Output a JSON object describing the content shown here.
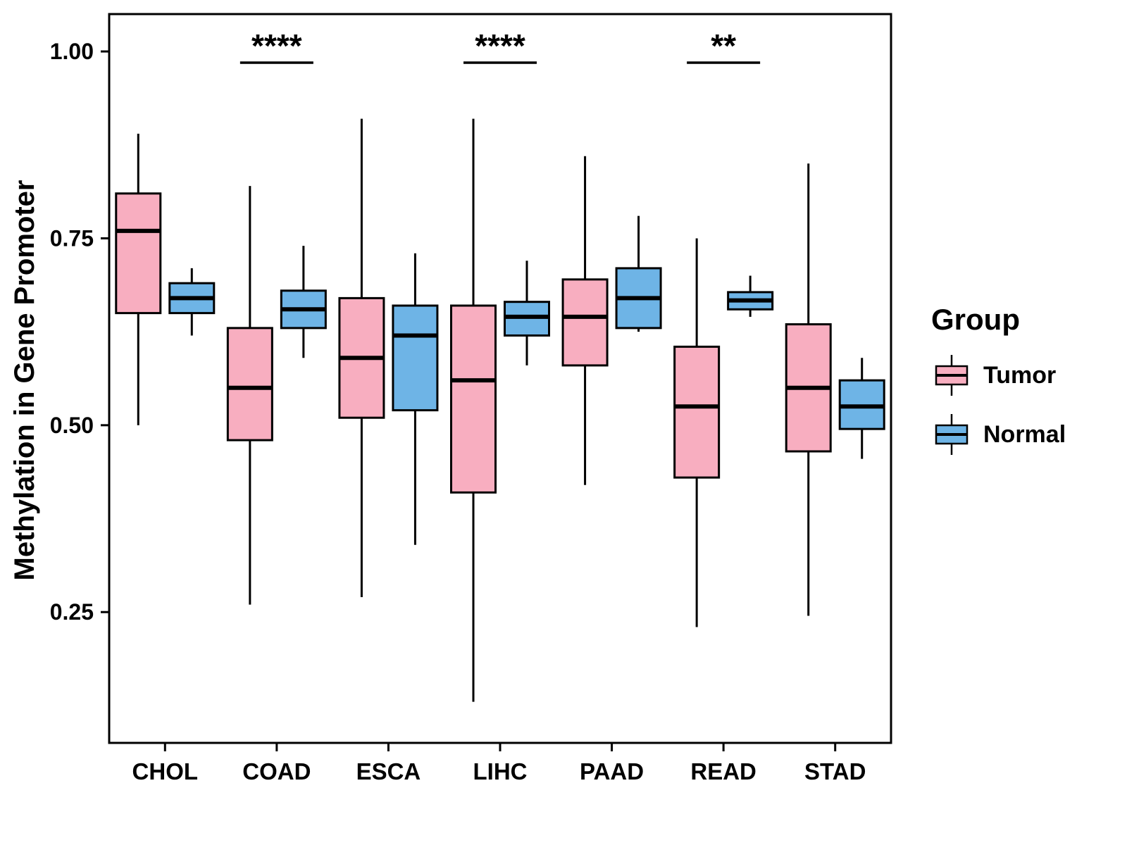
{
  "chart_data": {
    "type": "boxplot",
    "title": "",
    "ylabel": "Methylation in Gene Promoter",
    "xlabel": "",
    "categories": [
      "CHOL",
      "COAD",
      "ESCA",
      "LIHC",
      "PAAD",
      "READ",
      "STAD"
    ],
    "ylim": [
      0.075,
      1.05
    ],
    "yticks": [
      0.25,
      0.5,
      0.75,
      1.0
    ],
    "ytick_labels": [
      "0.25",
      "0.50",
      "0.75",
      "1.00"
    ],
    "grid": "off",
    "legend": {
      "title": "Group",
      "position": "right",
      "entries": [
        {
          "label": "Tumor",
          "color": "#F8AEC0"
        },
        {
          "label": "Normal",
          "color": "#6EB4E6"
        }
      ]
    },
    "series": [
      {
        "name": "Tumor",
        "color": "#F8AEC0",
        "boxes": [
          {
            "category": "CHOL",
            "whisker_low": 0.5,
            "q1": 0.65,
            "median": 0.76,
            "q3": 0.81,
            "whisker_high": 0.89
          },
          {
            "category": "COAD",
            "whisker_low": 0.26,
            "q1": 0.48,
            "median": 0.55,
            "q3": 0.63,
            "whisker_high": 0.82
          },
          {
            "category": "ESCA",
            "whisker_low": 0.27,
            "q1": 0.51,
            "median": 0.59,
            "q3": 0.67,
            "whisker_high": 0.91
          },
          {
            "category": "LIHC",
            "whisker_low": 0.13,
            "q1": 0.41,
            "median": 0.56,
            "q3": 0.66,
            "whisker_high": 0.91
          },
          {
            "category": "PAAD",
            "whisker_low": 0.42,
            "q1": 0.58,
            "median": 0.645,
            "q3": 0.695,
            "whisker_high": 0.86
          },
          {
            "category": "READ",
            "whisker_low": 0.23,
            "q1": 0.43,
            "median": 0.525,
            "q3": 0.605,
            "whisker_high": 0.75
          },
          {
            "category": "STAD",
            "whisker_low": 0.245,
            "q1": 0.465,
            "median": 0.55,
            "q3": 0.635,
            "whisker_high": 0.85
          }
        ]
      },
      {
        "name": "Normal",
        "color": "#6EB4E6",
        "boxes": [
          {
            "category": "CHOL",
            "whisker_low": 0.62,
            "q1": 0.65,
            "median": 0.67,
            "q3": 0.69,
            "whisker_high": 0.71
          },
          {
            "category": "COAD",
            "whisker_low": 0.59,
            "q1": 0.63,
            "median": 0.655,
            "q3": 0.68,
            "whisker_high": 0.74
          },
          {
            "category": "ESCA",
            "whisker_low": 0.34,
            "q1": 0.52,
            "median": 0.62,
            "q3": 0.66,
            "whisker_high": 0.73
          },
          {
            "category": "LIHC",
            "whisker_low": 0.58,
            "q1": 0.62,
            "median": 0.645,
            "q3": 0.665,
            "whisker_high": 0.72
          },
          {
            "category": "PAAD",
            "whisker_low": 0.625,
            "q1": 0.63,
            "median": 0.67,
            "q3": 0.71,
            "whisker_high": 0.78
          },
          {
            "category": "READ",
            "whisker_low": 0.645,
            "q1": 0.655,
            "median": 0.667,
            "q3": 0.678,
            "whisker_high": 0.7
          },
          {
            "category": "STAD",
            "whisker_low": 0.455,
            "q1": 0.495,
            "median": 0.525,
            "q3": 0.56,
            "whisker_high": 0.59
          }
        ]
      }
    ],
    "annotations": [
      {
        "category": "COAD",
        "label": "****",
        "y": 0.985
      },
      {
        "category": "LIHC",
        "label": "****",
        "y": 0.985
      },
      {
        "category": "READ",
        "label": "**",
        "y": 0.985
      }
    ]
  }
}
